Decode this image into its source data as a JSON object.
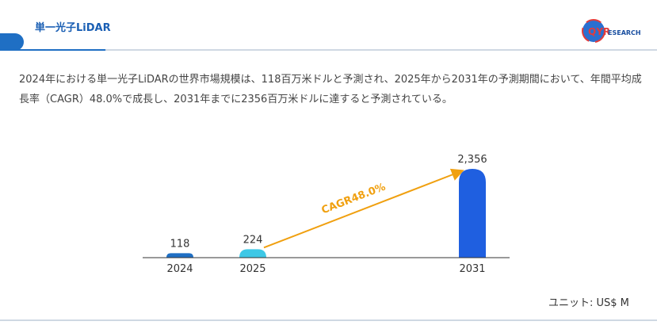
{
  "header": {
    "title": "単一光子LiDAR",
    "logo_mark": "QYR",
    "logo_text": "ESEARCH"
  },
  "description": "2024年における単一光子LiDARの世界市場規模は、118百万米ドルと予測され、2025年から2031年の予測期間において、年間平均成長率（CAGR）48.0%で成長し、2031年までに2356百万米ドルに達すると予測されている。",
  "unit_label": "ユニット: US$ M",
  "colors": {
    "brand": "#1f6fc4",
    "bar_2024": "#1f6fc4",
    "bar_2025": "#3ec8e6",
    "bar_2031": "#1f5fe0",
    "cagr_arrow": "#f0a010"
  },
  "chart_data": {
    "type": "bar",
    "categories": [
      "2024",
      "2025",
      "2031"
    ],
    "values": [
      118,
      224,
      2356
    ],
    "data_labels": [
      "118",
      "224",
      "2,356"
    ],
    "annotation": "CAGR48.0%",
    "ylim": [
      0,
      2356
    ]
  }
}
